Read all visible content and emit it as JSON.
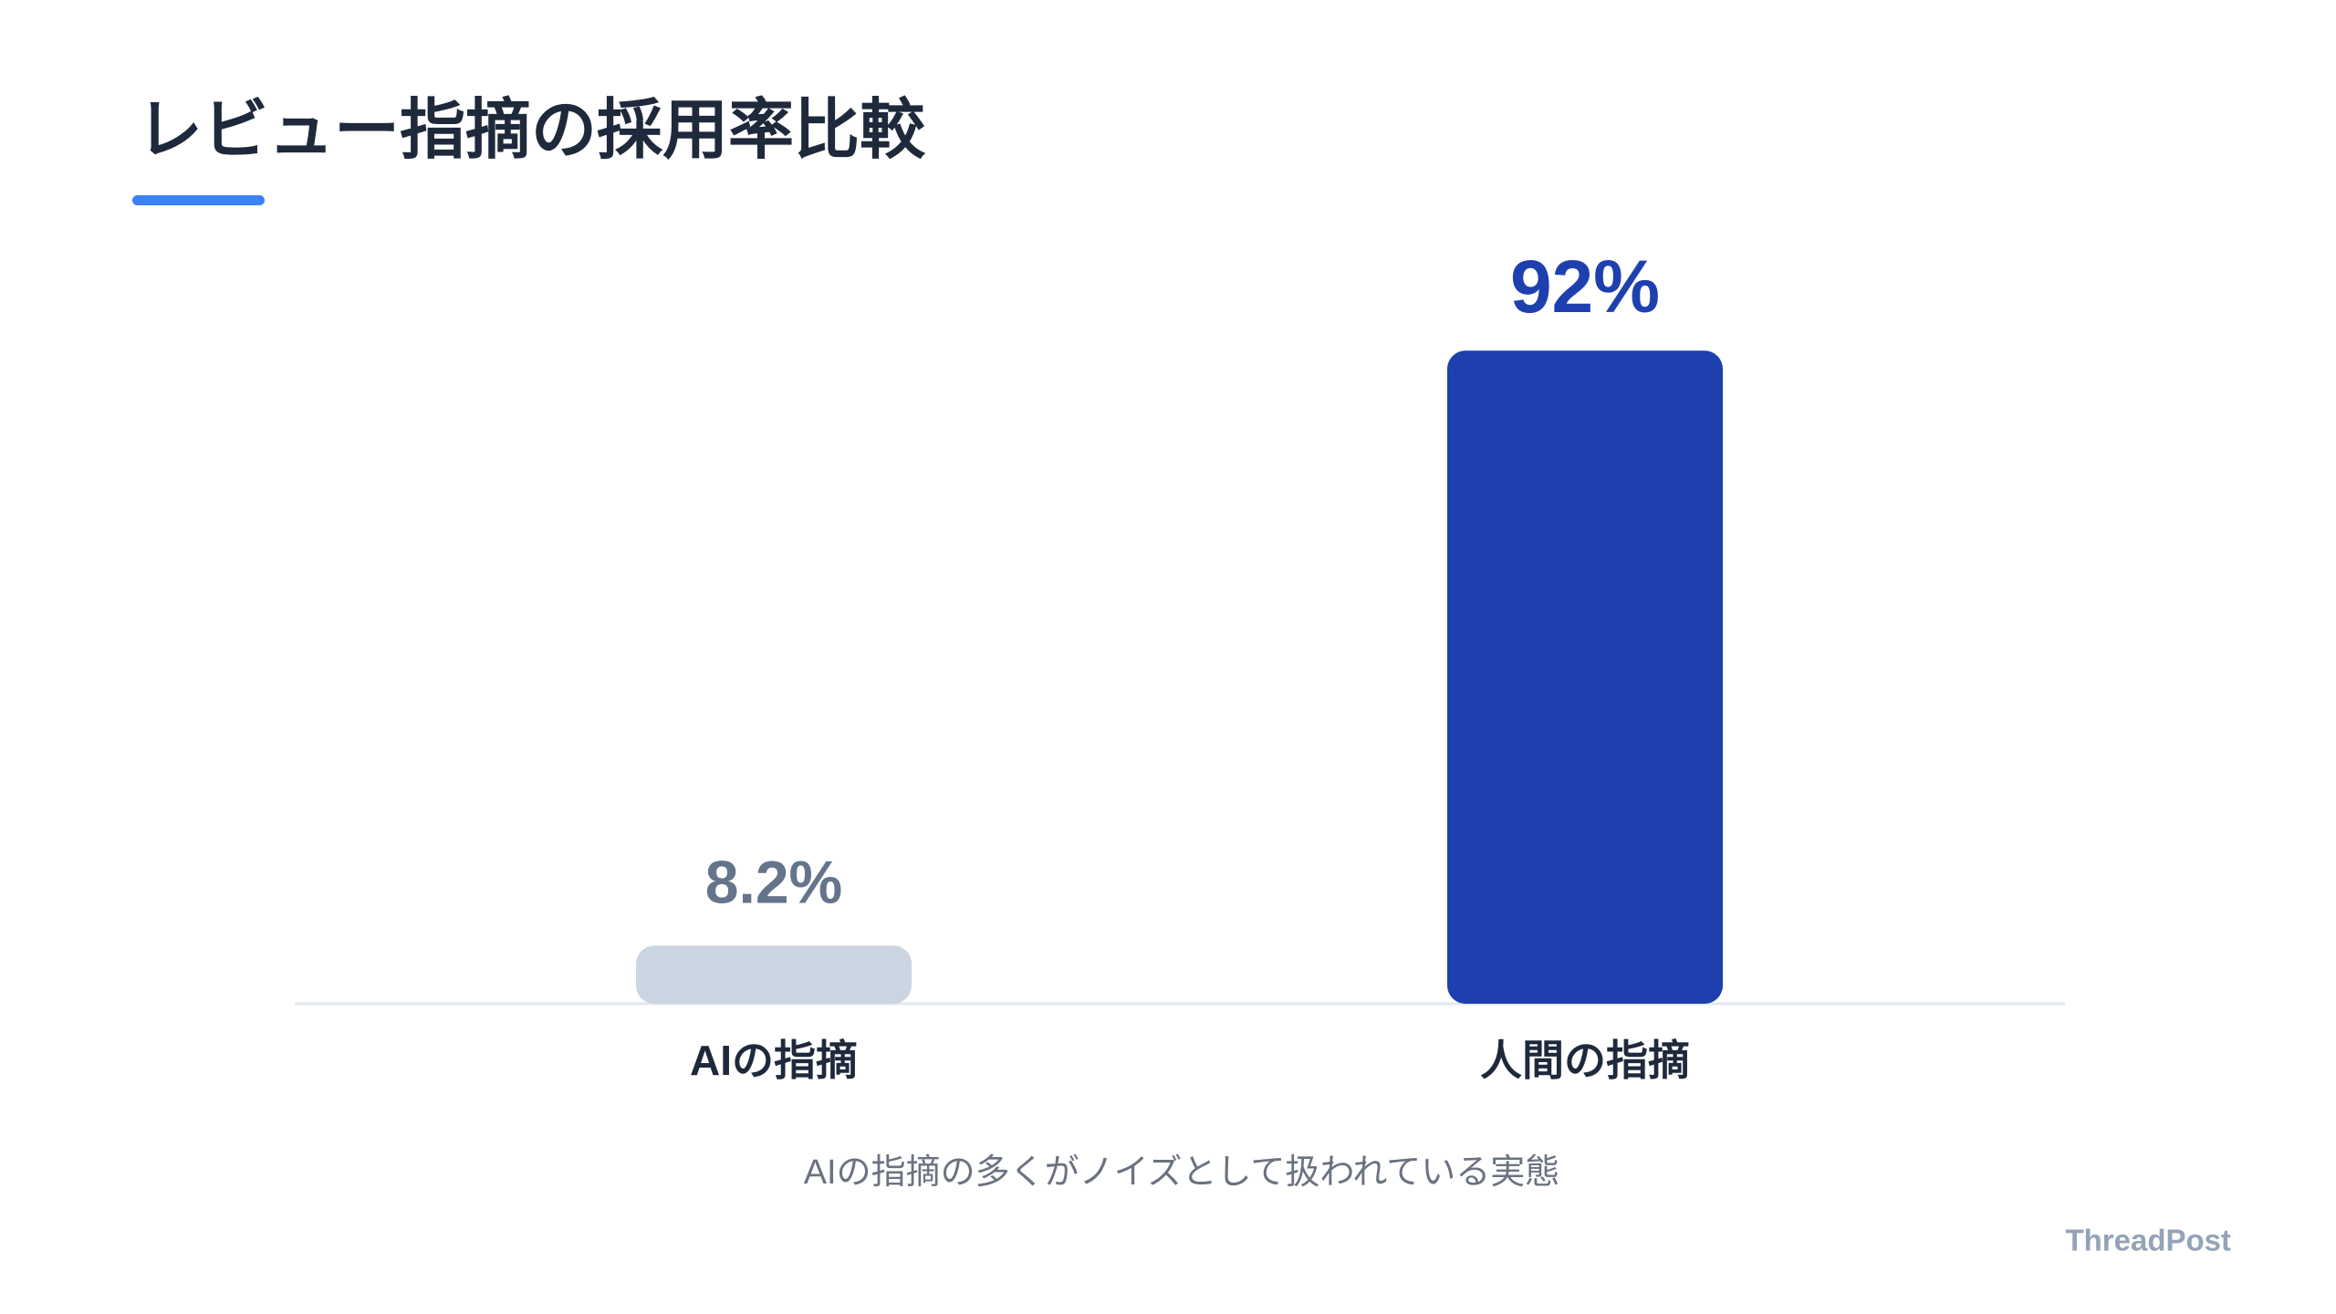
{
  "chart_data": {
    "type": "bar",
    "title": "レビュー指摘の採用率比較",
    "categories": [
      "AIの指摘",
      "人間の指摘"
    ],
    "values": [
      8.2,
      92
    ],
    "value_labels": [
      "8.2%",
      "92%"
    ],
    "colors": [
      "#cbd5e1",
      "#1e40af"
    ],
    "label_colors": [
      "#64748b",
      "#1e40af"
    ],
    "ylim": [
      0,
      100
    ],
    "caption": "AIの指摘の多くがノイズとして扱われている実態",
    "brand": "ThreadPost"
  }
}
